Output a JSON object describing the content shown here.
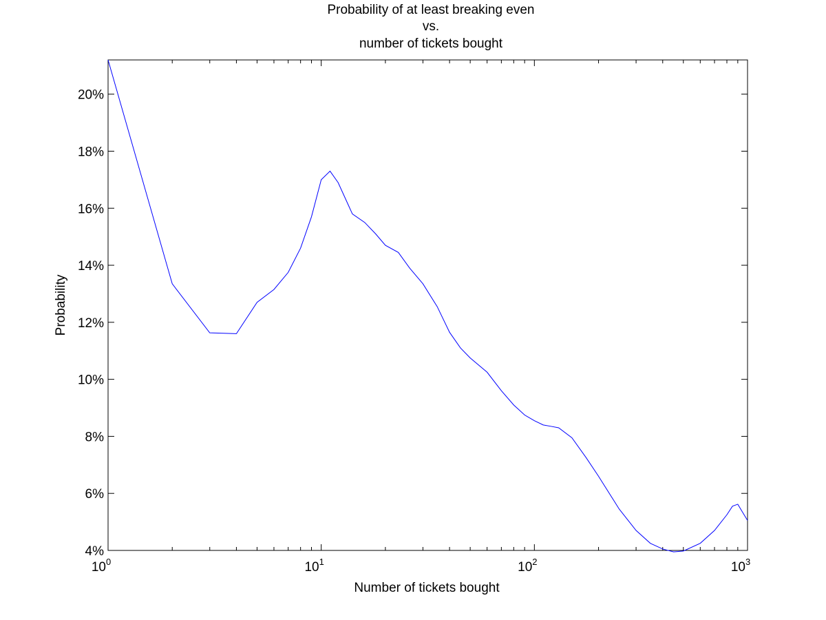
{
  "colors": {
    "background": "#ffffff",
    "axes": "#000000",
    "series_line": "#0000ff"
  },
  "chart_data": {
    "type": "line",
    "title": [
      "Probability of at least breaking even",
      "vs.",
      "number of tickets bought"
    ],
    "xlabel": "Number of tickets bought",
    "ylabel": "Probability",
    "xscale": "log",
    "xlim": [
      1,
      1000
    ],
    "ylim": [
      0.04,
      0.212
    ],
    "grid": false,
    "legend": "none",
    "x_ticks": [
      {
        "value": 1,
        "base": "10",
        "exp": "0"
      },
      {
        "value": 10,
        "base": "10",
        "exp": "1"
      },
      {
        "value": 100,
        "base": "10",
        "exp": "2"
      },
      {
        "value": 1000,
        "base": "10",
        "exp": "3"
      }
    ],
    "y_ticks": [
      {
        "value": 0.04,
        "label": "4%"
      },
      {
        "value": 0.06,
        "label": "6%"
      },
      {
        "value": 0.08,
        "label": "8%"
      },
      {
        "value": 0.1,
        "label": "10%"
      },
      {
        "value": 0.12,
        "label": "12%"
      },
      {
        "value": 0.14,
        "label": "14%"
      },
      {
        "value": 0.16,
        "label": "16%"
      },
      {
        "value": 0.18,
        "label": "18%"
      },
      {
        "value": 0.2,
        "label": "20%"
      }
    ],
    "series": [
      {
        "x": [
          1,
          2,
          3,
          4,
          5,
          6,
          7,
          8,
          9,
          10,
          11,
          12,
          14,
          16,
          18,
          20,
          23,
          26,
          30,
          35,
          40,
          45,
          50,
          60,
          70,
          80,
          90,
          100,
          110,
          120,
          130,
          150,
          175,
          200,
          250,
          300,
          350,
          400,
          450,
          500,
          600,
          700,
          800,
          850,
          900,
          1000
        ],
        "y": [
          0.212,
          0.1335,
          0.1163,
          0.116,
          0.127,
          0.1315,
          0.1375,
          0.146,
          0.157,
          0.17,
          0.173,
          0.169,
          0.158,
          0.155,
          0.151,
          0.147,
          0.1445,
          0.139,
          0.1335,
          0.1255,
          0.1165,
          0.111,
          0.1075,
          0.1025,
          0.096,
          0.091,
          0.0875,
          0.0855,
          0.084,
          0.0835,
          0.083,
          0.0795,
          0.0725,
          0.066,
          0.0545,
          0.047,
          0.0425,
          0.0405,
          0.0395,
          0.0398,
          0.0425,
          0.047,
          0.0525,
          0.0555,
          0.0562,
          0.0505
        ]
      }
    ]
  }
}
